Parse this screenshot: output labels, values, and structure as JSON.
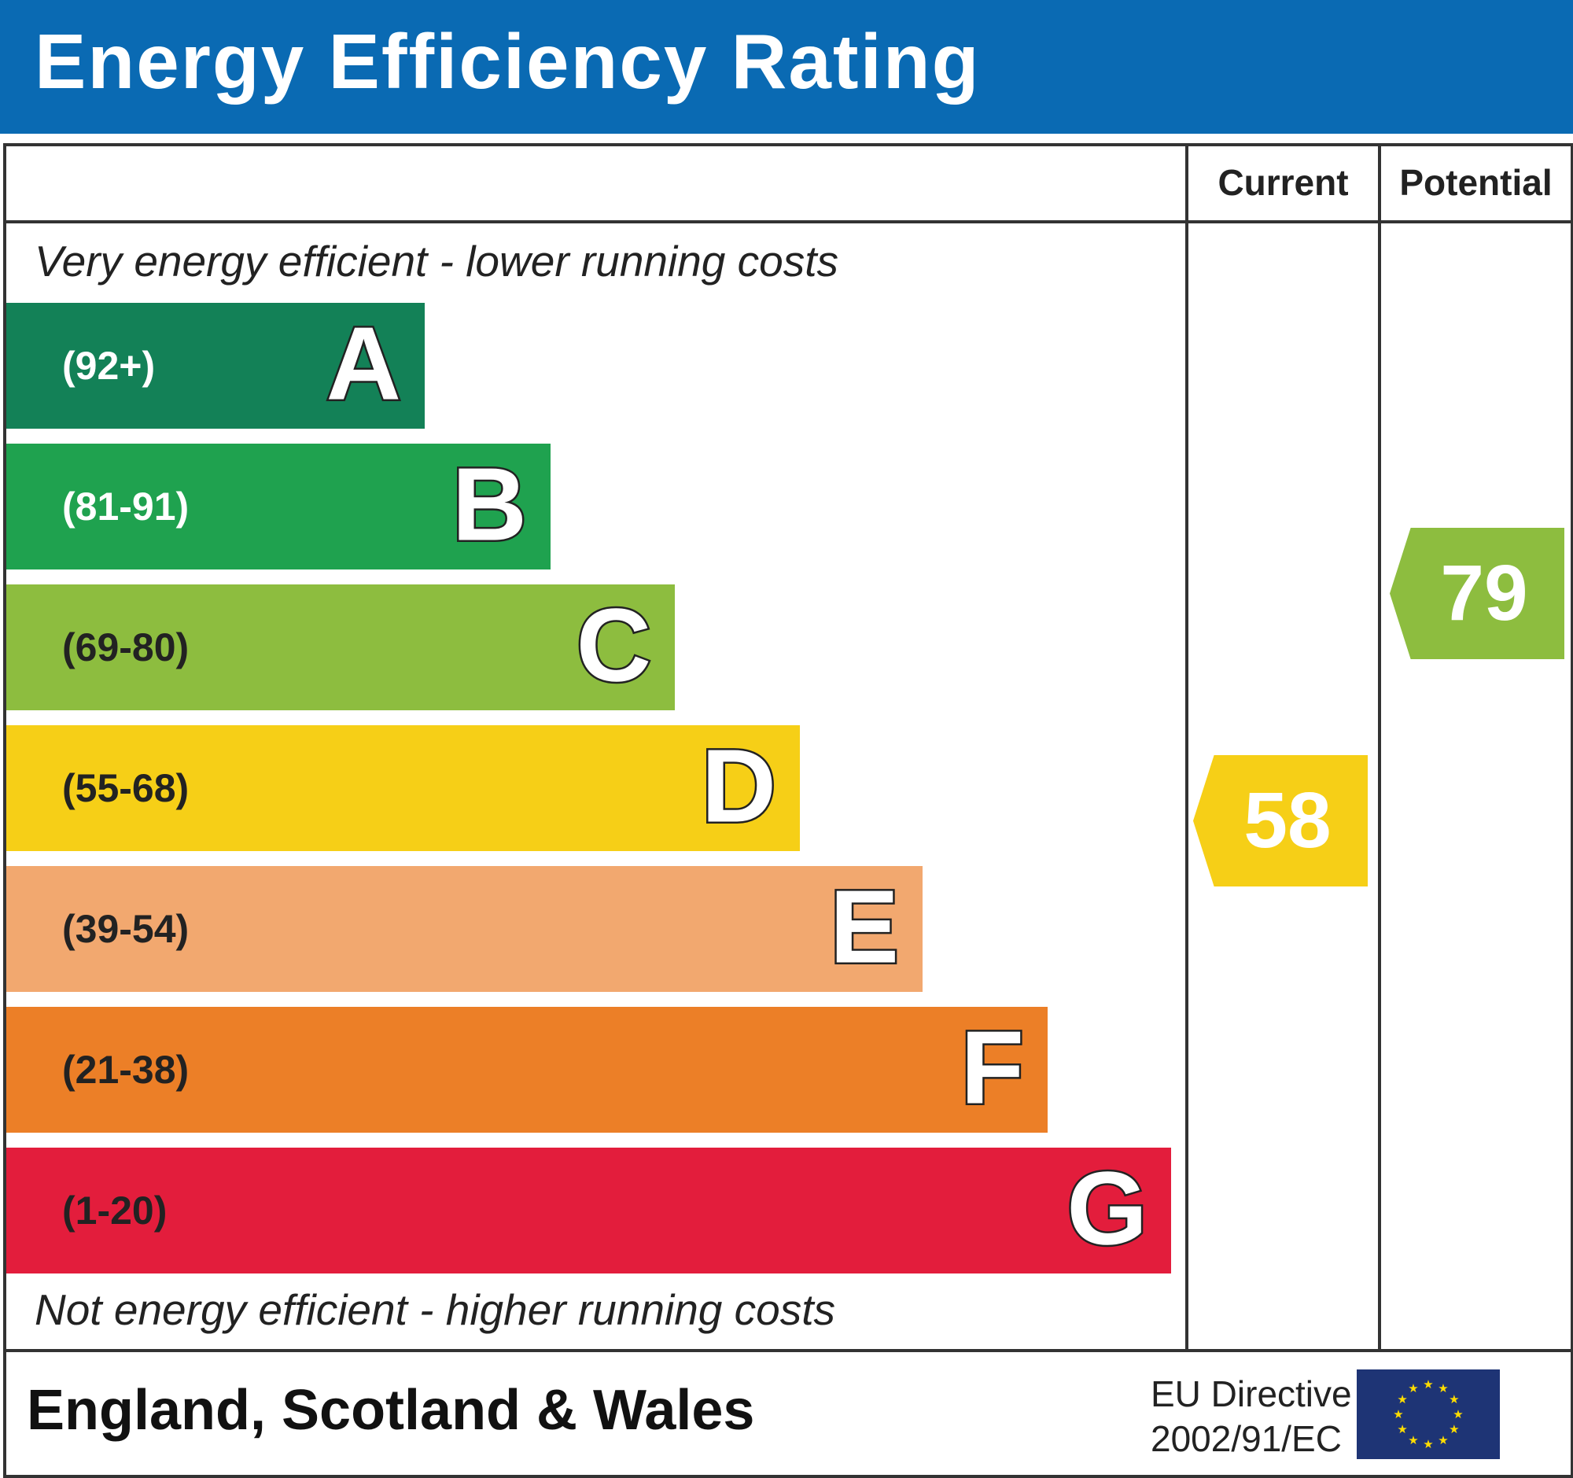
{
  "header": {
    "title": "Energy Efficiency Rating"
  },
  "columns": {
    "current": "Current",
    "potential": "Potential"
  },
  "notes": {
    "top": "Very energy efficient - lower running costs",
    "bottom": "Not energy efficient - higher running costs"
  },
  "footer": {
    "region": "England, Scotland & Wales",
    "directive_line1": "EU Directive",
    "directive_line2": "2002/91/EC"
  },
  "chart_data": {
    "type": "bar",
    "title": "Energy Efficiency Rating",
    "categories": [
      "A",
      "B",
      "C",
      "D",
      "E",
      "F",
      "G"
    ],
    "bands": [
      {
        "letter": "A",
        "range": "(92+)",
        "color": "#138157",
        "text_color": "#ffffff"
      },
      {
        "letter": "B",
        "range": "(81-91)",
        "color": "#1fa24f",
        "text_color": "#ffffff"
      },
      {
        "letter": "C",
        "range": "(69-80)",
        "color": "#8dbd3f",
        "text_color": "#222222"
      },
      {
        "letter": "D",
        "range": "(55-68)",
        "color": "#f6cf17",
        "text_color": "#222222"
      },
      {
        "letter": "E",
        "range": "(39-54)",
        "color": "#f2a86f",
        "text_color": "#222222"
      },
      {
        "letter": "F",
        "range": "(21-38)",
        "color": "#ec7f27",
        "text_color": "#222222"
      },
      {
        "letter": "G",
        "range": "(1-20)",
        "color": "#e31d3c",
        "text_color": "#222222"
      }
    ],
    "current": {
      "value": "58",
      "band": "D",
      "color": "#f6cf17"
    },
    "potential": {
      "value": "79",
      "band": "C",
      "color": "#8dbd3f"
    }
  }
}
